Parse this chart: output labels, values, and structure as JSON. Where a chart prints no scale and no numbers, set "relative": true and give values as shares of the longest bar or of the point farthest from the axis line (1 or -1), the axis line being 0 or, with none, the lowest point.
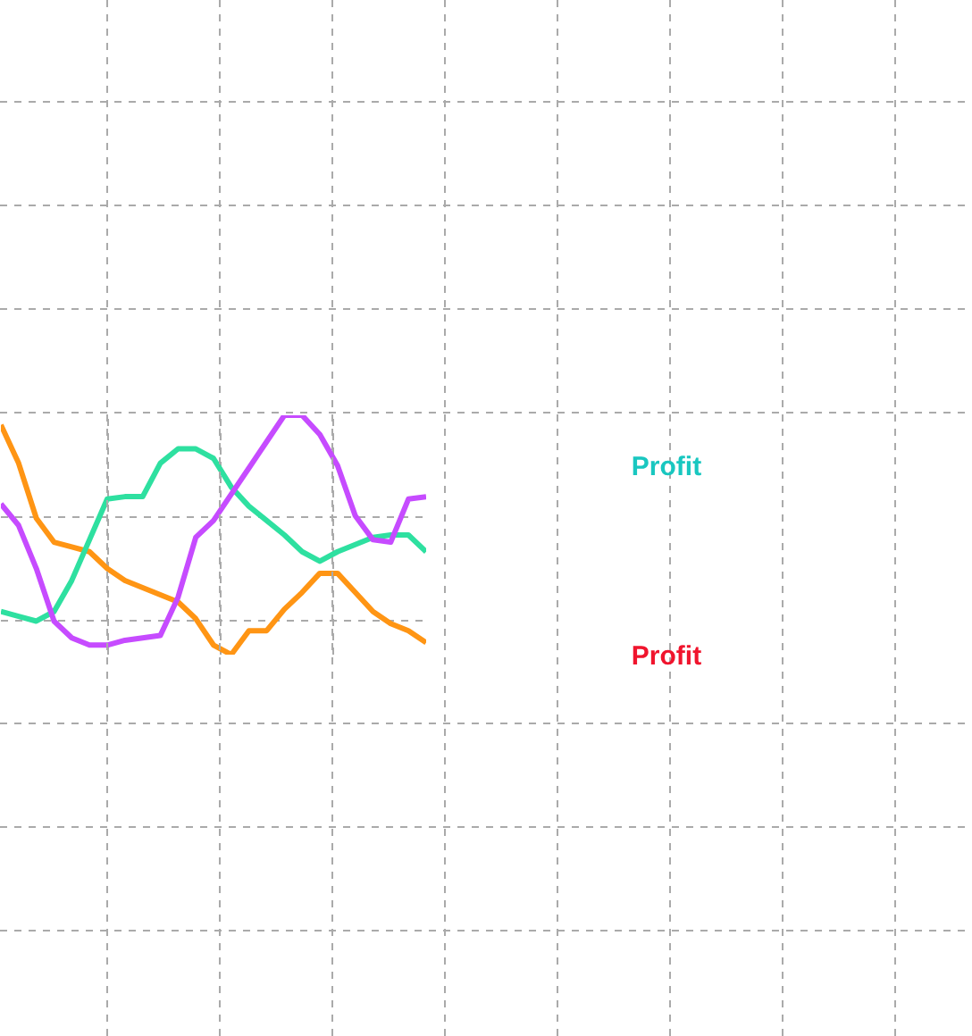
{
  "chart_data": {
    "type": "line",
    "relative": true,
    "grid": true,
    "marker": "none",
    "line_style": "solid",
    "categories": [
      null,
      null,
      null,
      null,
      null,
      null,
      null,
      null,
      null,
      null,
      null,
      null,
      null,
      null,
      null,
      null,
      null,
      null,
      null,
      null,
      null,
      null,
      null,
      null,
      null
    ],
    "series": [
      {
        "color": "#ff9514",
        "values": [
          0.96,
          0.8,
          0.57,
          0.47,
          0.45,
          0.43,
          0.36,
          0.31,
          0.28,
          0.25,
          0.22,
          0.15,
          0.04,
          0.0,
          0.1,
          0.1,
          0.19,
          0.26,
          0.34,
          0.34,
          0.26,
          0.18,
          0.13,
          0.1,
          0.05
        ]
      },
      {
        "color": "#2ee0a0",
        "values": [
          0.18,
          0.16,
          0.14,
          0.18,
          0.31,
          0.48,
          0.65,
          0.66,
          0.66,
          0.8,
          0.86,
          0.86,
          0.82,
          0.7,
          0.62,
          0.56,
          0.5,
          0.43,
          0.39,
          0.43,
          0.46,
          0.49,
          0.5,
          0.5,
          0.43
        ]
      },
      {
        "color": "#c64bff",
        "values": [
          0.63,
          0.54,
          0.36,
          0.14,
          0.07,
          0.04,
          0.04,
          0.06,
          0.07,
          0.08,
          0.24,
          0.49,
          0.56,
          0.67,
          0.78,
          0.89,
          1.0,
          1.0,
          0.92,
          0.79,
          0.58,
          0.48,
          0.47,
          0.65,
          0.66
        ]
      }
    ],
    "annotations": [
      "Profit",
      "Profit"
    ]
  }
}
